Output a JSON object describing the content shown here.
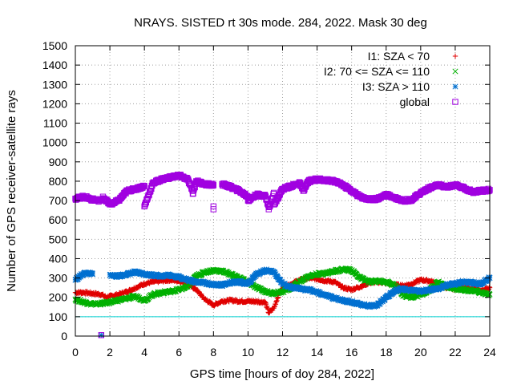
{
  "chart_data": {
    "type": "scatter",
    "title": "NRAYS. SISTED rt 30s mode. 284, 2022. Mask 30 deg",
    "xlabel": "GPS time [hours of doy 284, 2022]",
    "ylabel": "Number of GPS receiver-satellite rays",
    "xlim": [
      0,
      24
    ],
    "ylim": [
      0,
      1500
    ],
    "x_ticks": [
      0,
      2,
      4,
      6,
      8,
      10,
      12,
      14,
      16,
      18,
      20,
      22,
      24
    ],
    "y_ticks": [
      0,
      100,
      200,
      300,
      400,
      500,
      600,
      700,
      800,
      900,
      1000,
      1100,
      1200,
      1300,
      1400,
      1500
    ],
    "grid": true,
    "legend_position": "top-right",
    "reference_line": {
      "y": 100,
      "color": "#00d0d0"
    },
    "series": [
      {
        "name": "I1: SZA < 70",
        "marker": "+",
        "color": "#e00000",
        "points": [
          [
            0,
            225
          ],
          [
            0.5,
            225
          ],
          [
            1,
            220
          ],
          [
            1.5,
            215
          ],
          [
            1.8,
            200
          ],
          [
            2,
            205
          ],
          [
            2.5,
            215
          ],
          [
            3,
            230
          ],
          [
            3.5,
            250
          ],
          [
            4,
            270
          ],
          [
            4.5,
            280
          ],
          [
            5,
            285
          ],
          [
            5.5,
            290
          ],
          [
            6,
            285
          ],
          [
            6.5,
            270
          ],
          [
            7,
            240
          ],
          [
            7.5,
            190
          ],
          [
            8,
            160
          ],
          [
            8.5,
            180
          ],
          [
            9,
            185
          ],
          [
            9.5,
            180
          ],
          [
            10,
            180
          ],
          [
            10.5,
            178
          ],
          [
            11,
            175
          ],
          [
            11.2,
            120
          ],
          [
            11.5,
            145
          ],
          [
            11.8,
            220
          ],
          [
            12,
            245
          ],
          [
            12.5,
            270
          ],
          [
            13,
            290
          ],
          [
            13.5,
            300
          ],
          [
            14,
            295
          ],
          [
            14.5,
            285
          ],
          [
            15,
            280
          ],
          [
            15.5,
            250
          ],
          [
            16,
            240
          ],
          [
            16.5,
            255
          ],
          [
            17,
            275
          ],
          [
            17.5,
            280
          ],
          [
            18,
            275
          ],
          [
            18.5,
            265
          ],
          [
            19,
            260
          ],
          [
            19.5,
            270
          ],
          [
            20,
            290
          ],
          [
            20.5,
            285
          ],
          [
            21,
            270
          ],
          [
            21.5,
            250
          ],
          [
            22,
            245
          ],
          [
            22.5,
            250
          ],
          [
            23,
            245
          ],
          [
            23.5,
            235
          ],
          [
            24,
            250
          ]
        ]
      },
      {
        "name": "I2: 70 <= SZA <= 110",
        "marker": "x",
        "color": "#00b000",
        "points": [
          [
            0,
            190
          ],
          [
            0.5,
            175
          ],
          [
            1,
            165
          ],
          [
            1.5,
            168
          ],
          [
            2,
            175
          ],
          [
            2.5,
            185
          ],
          [
            3,
            195
          ],
          [
            3.5,
            205
          ],
          [
            4,
            185
          ],
          [
            4.5,
            215
          ],
          [
            5,
            225
          ],
          [
            5.5,
            230
          ],
          [
            6,
            240
          ],
          [
            6.5,
            255
          ],
          [
            7,
            310
          ],
          [
            7.5,
            330
          ],
          [
            8,
            340
          ],
          [
            8.5,
            335
          ],
          [
            9,
            320
          ],
          [
            9.5,
            300
          ],
          [
            10,
            280
          ],
          [
            10.5,
            250
          ],
          [
            11,
            230
          ],
          [
            11.5,
            220
          ],
          [
            12,
            230
          ],
          [
            12.5,
            250
          ],
          [
            13,
            280
          ],
          [
            13.5,
            310
          ],
          [
            14,
            320
          ],
          [
            14.5,
            325
          ],
          [
            15,
            335
          ],
          [
            15.5,
            345
          ],
          [
            16,
            340
          ],
          [
            16.5,
            300
          ],
          [
            17,
            280
          ],
          [
            17.5,
            285
          ],
          [
            18,
            280
          ],
          [
            18.5,
            260
          ],
          [
            19,
            210
          ],
          [
            19.5,
            200
          ],
          [
            20,
            215
          ],
          [
            20.5,
            235
          ],
          [
            21,
            280
          ],
          [
            21.5,
            255
          ],
          [
            22,
            245
          ],
          [
            22.5,
            240
          ],
          [
            23,
            235
          ],
          [
            23.5,
            225
          ],
          [
            24,
            215
          ]
        ]
      },
      {
        "name": "I3: SZA > 110",
        "marker": "*",
        "color": "#0070d0",
        "points": [
          [
            0,
            290
          ],
          [
            0.5,
            325
          ],
          [
            1,
            320
          ],
          [
            1.5,
            5
          ],
          [
            2,
            315
          ],
          [
            2.5,
            310
          ],
          [
            3,
            320
          ],
          [
            3.5,
            330
          ],
          [
            4,
            320
          ],
          [
            4.5,
            315
          ],
          [
            5,
            310
          ],
          [
            5.5,
            315
          ],
          [
            6,
            305
          ],
          [
            6.5,
            290
          ],
          [
            7,
            280
          ],
          [
            7.5,
            275
          ],
          [
            8,
            265
          ],
          [
            8.5,
            265
          ],
          [
            9,
            275
          ],
          [
            9.5,
            280
          ],
          [
            10,
            270
          ],
          [
            10.5,
            320
          ],
          [
            11,
            340
          ],
          [
            11.5,
            330
          ],
          [
            12,
            270
          ],
          [
            12.5,
            250
          ],
          [
            13,
            245
          ],
          [
            13.5,
            240
          ],
          [
            14,
            225
          ],
          [
            14.5,
            210
          ],
          [
            15,
            195
          ],
          [
            15.5,
            185
          ],
          [
            16,
            175
          ],
          [
            16.5,
            165
          ],
          [
            17,
            155
          ],
          [
            17.5,
            160
          ],
          [
            18,
            200
          ],
          [
            18.5,
            235
          ],
          [
            19,
            245
          ],
          [
            19.5,
            235
          ],
          [
            20,
            230
          ],
          [
            20.5,
            240
          ],
          [
            21,
            245
          ],
          [
            21.5,
            265
          ],
          [
            22,
            270
          ],
          [
            22.5,
            280
          ],
          [
            23,
            275
          ],
          [
            23.5,
            270
          ],
          [
            24,
            300
          ]
        ]
      },
      {
        "name": "global",
        "marker": "square",
        "color": "#a000e0",
        "points": [
          [
            0,
            710
          ],
          [
            0.5,
            720
          ],
          [
            1,
            705
          ],
          [
            1.5,
            700
          ],
          [
            1.5,
            5
          ],
          [
            1.6,
            720
          ],
          [
            2,
            680
          ],
          [
            2.5,
            700
          ],
          [
            3,
            750
          ],
          [
            3.5,
            760
          ],
          [
            4,
            775
          ],
          [
            4,
            670
          ],
          [
            4.5,
            790
          ],
          [
            5,
            810
          ],
          [
            5.5,
            820
          ],
          [
            6,
            830
          ],
          [
            6.5,
            810
          ],
          [
            6.8,
            750
          ],
          [
            6.8,
            735
          ],
          [
            7,
            800
          ],
          [
            7.5,
            785
          ],
          [
            8,
            780
          ],
          [
            8,
            670
          ],
          [
            8,
            655
          ],
          [
            8.5,
            785
          ],
          [
            9,
            770
          ],
          [
            9.5,
            750
          ],
          [
            10,
            720
          ],
          [
            10,
            700
          ],
          [
            10.5,
            730
          ],
          [
            11,
            725
          ],
          [
            11.2,
            670
          ],
          [
            11.2,
            655
          ],
          [
            11.5,
            740
          ],
          [
            11.5,
            680
          ],
          [
            12,
            760
          ],
          [
            12.5,
            775
          ],
          [
            13,
            790
          ],
          [
            13.2,
            750
          ],
          [
            13.5,
            800
          ],
          [
            14,
            810
          ],
          [
            14.5,
            805
          ],
          [
            15,
            800
          ],
          [
            15.5,
            780
          ],
          [
            16,
            750
          ],
          [
            16.5,
            720
          ],
          [
            17,
            705
          ],
          [
            17.5,
            710
          ],
          [
            18,
            730
          ],
          [
            18.5,
            715
          ],
          [
            19,
            700
          ],
          [
            19.5,
            705
          ],
          [
            20,
            740
          ],
          [
            20.5,
            765
          ],
          [
            21,
            780
          ],
          [
            21.5,
            770
          ],
          [
            22,
            780
          ],
          [
            22.5,
            765
          ],
          [
            23,
            745
          ],
          [
            23.5,
            750
          ],
          [
            24,
            755
          ]
        ]
      }
    ]
  },
  "colors": {
    "axis": "#000000",
    "grid": "#a0a0a0"
  }
}
